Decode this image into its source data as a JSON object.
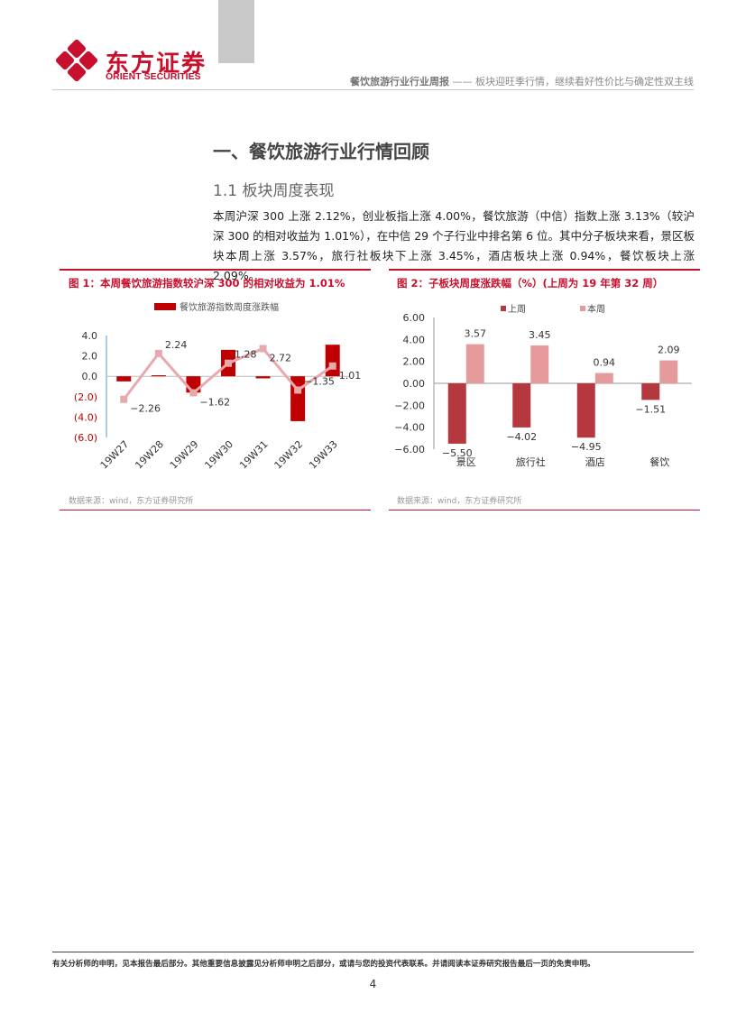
{
  "header": {
    "logo_cn": "东方证券",
    "logo_en": "ORIENT SECURITIES",
    "report_title": "餐饮旅游行业行业周报",
    "report_separator": " —— ",
    "report_subtitle": "板块迎旺季行情，继续看好性价比与确定性双主线",
    "brand_color": "#c8102e"
  },
  "section": {
    "heading": "一、餐饮旅游行业行情回顾",
    "subheading": "1.1 板块周度表现",
    "paragraph": "本周沪深 300 上涨 2.12%，创业板指上涨 4.00%，餐饮旅游（中信）指数上涨 3.13%（较沪深 300 的相对收益为 1.01%），在中信 29 个子行业中排名第 6 位。其中分子板块来看，景区板块本周上涨 3.57%，旅行社板块下上涨 3.45%，酒店板块上涨 0.94%，餐饮板块上涨 2.09%。"
  },
  "figures": {
    "fig1_title": "图 1：本周餐饮旅游指数较沪深 300 的相对收益为 1.01%",
    "fig1_source": "数据来源：wind，东方证券研究所",
    "fig2_title": "图 2：子板块周度涨跌幅（%）(上周为 19 年第 32 周）",
    "fig2_source": "数据来源：wind，东方证券研究所"
  },
  "chart_data": [
    {
      "type": "bar",
      "categories": [
        "19W27",
        "19W28",
        "19W29",
        "19W30",
        "19W31",
        "19W32",
        "19W33"
      ],
      "series": [
        {
          "name": "餐饮旅游指数周度涨跌幅",
          "kind": "bar",
          "color": "#c00000",
          "values": [
            -0.5,
            0.1,
            -1.6,
            2.6,
            -0.2,
            -4.4,
            3.1
          ]
        },
        {
          "name": "",
          "kind": "line",
          "color": "#e8a9ad",
          "values": [
            -2.26,
            2.24,
            -1.62,
            1.28,
            2.72,
            -1.35,
            1.01
          ],
          "labels": [
            "−2.26",
            "2.24",
            "−1.62",
            "1.28",
            "2.72",
            "−1.35",
            "1.01"
          ]
        }
      ],
      "yticks": [
        "4.0",
        "2.0",
        "0.0",
        "(2.0)",
        "(4.0)",
        "(6.0)"
      ],
      "ytick_values": [
        4,
        2,
        0,
        -2,
        -4,
        -6
      ],
      "ytick_colors": [
        "#333",
        "#333",
        "#333",
        "#c00000",
        "#c00000",
        "#c00000"
      ],
      "ylim": [
        -6,
        4
      ],
      "legend": "top"
    },
    {
      "type": "bar",
      "categories": [
        "景区",
        "旅行社",
        "酒店",
        "餐饮"
      ],
      "series": [
        {
          "name": "上周",
          "color": "#b5383e",
          "values": [
            -5.5,
            -4.02,
            -4.95,
            -1.51
          ],
          "labels": [
            "−5.50",
            "−4.02",
            "−4.95",
            "−1.51"
          ]
        },
        {
          "name": "本周",
          "color": "#e59a9c",
          "values": [
            3.57,
            3.45,
            0.94,
            2.09
          ],
          "labels": [
            "3.57",
            "3.45",
            "0.94",
            "2.09"
          ]
        }
      ],
      "yticks": [
        "6.00",
        "4.00",
        "2.00",
        "0.00",
        "−2.00",
        "−4.00",
        "−6.00"
      ],
      "ytick_values": [
        6,
        4,
        2,
        0,
        -2,
        -4,
        -6
      ],
      "ylim": [
        -6,
        6
      ],
      "legend": "top"
    }
  ],
  "footer": {
    "disclaimer": "有关分析师的申明，见本报告最后部分。其他重要信息披露见分析师申明之后部分，或请与您的投资代表联系。并请阅读本证券研究报告最后一页的免责申明。",
    "page_number": "4"
  }
}
